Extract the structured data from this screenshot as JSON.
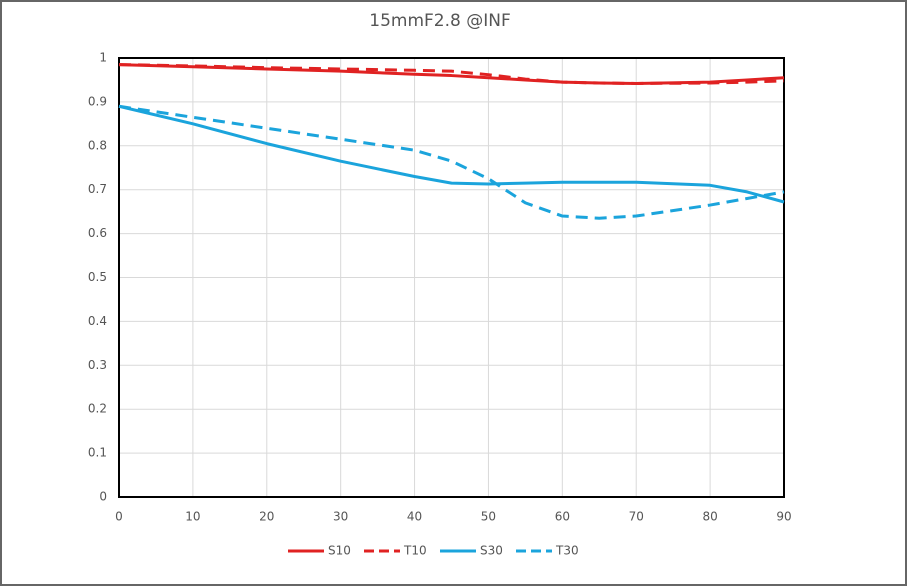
{
  "chart_data": {
    "type": "line",
    "title": "15mmF2.8 @INF",
    "x": [
      0,
      10,
      20,
      30,
      40,
      45,
      50,
      55,
      60,
      65,
      70,
      80,
      85,
      90
    ],
    "series": [
      {
        "name": "S10",
        "color": "#e02222",
        "dash": false,
        "values": [
          0.985,
          0.98,
          0.975,
          0.97,
          0.963,
          0.96,
          0.955,
          0.95,
          0.945,
          0.943,
          0.942,
          0.945,
          0.95,
          0.955
        ]
      },
      {
        "name": "T10",
        "color": "#e02222",
        "dash": true,
        "values": [
          0.985,
          0.982,
          0.978,
          0.975,
          0.972,
          0.97,
          0.962,
          0.952,
          0.945,
          0.943,
          0.942,
          0.943,
          0.945,
          0.948
        ]
      },
      {
        "name": "S30",
        "color": "#1ba4dc",
        "dash": false,
        "values": [
          0.89,
          0.85,
          0.805,
          0.765,
          0.73,
          0.715,
          0.713,
          0.715,
          0.717,
          0.717,
          0.717,
          0.71,
          0.695,
          0.672
        ]
      },
      {
        "name": "T30",
        "color": "#1ba4dc",
        "dash": true,
        "values": [
          0.89,
          0.865,
          0.84,
          0.815,
          0.79,
          0.765,
          0.725,
          0.67,
          0.64,
          0.635,
          0.64,
          0.665,
          0.68,
          0.695
        ]
      }
    ],
    "xlim": [
      0,
      90
    ],
    "xticks": [
      0,
      10,
      20,
      30,
      40,
      50,
      60,
      70,
      80,
      90
    ],
    "ylim": [
      0,
      1
    ],
    "yticks": [
      0,
      0.1,
      0.2,
      0.3,
      0.4,
      0.5,
      0.6,
      0.7,
      0.8,
      0.9,
      1
    ],
    "grid": true,
    "legend": "bottom"
  }
}
